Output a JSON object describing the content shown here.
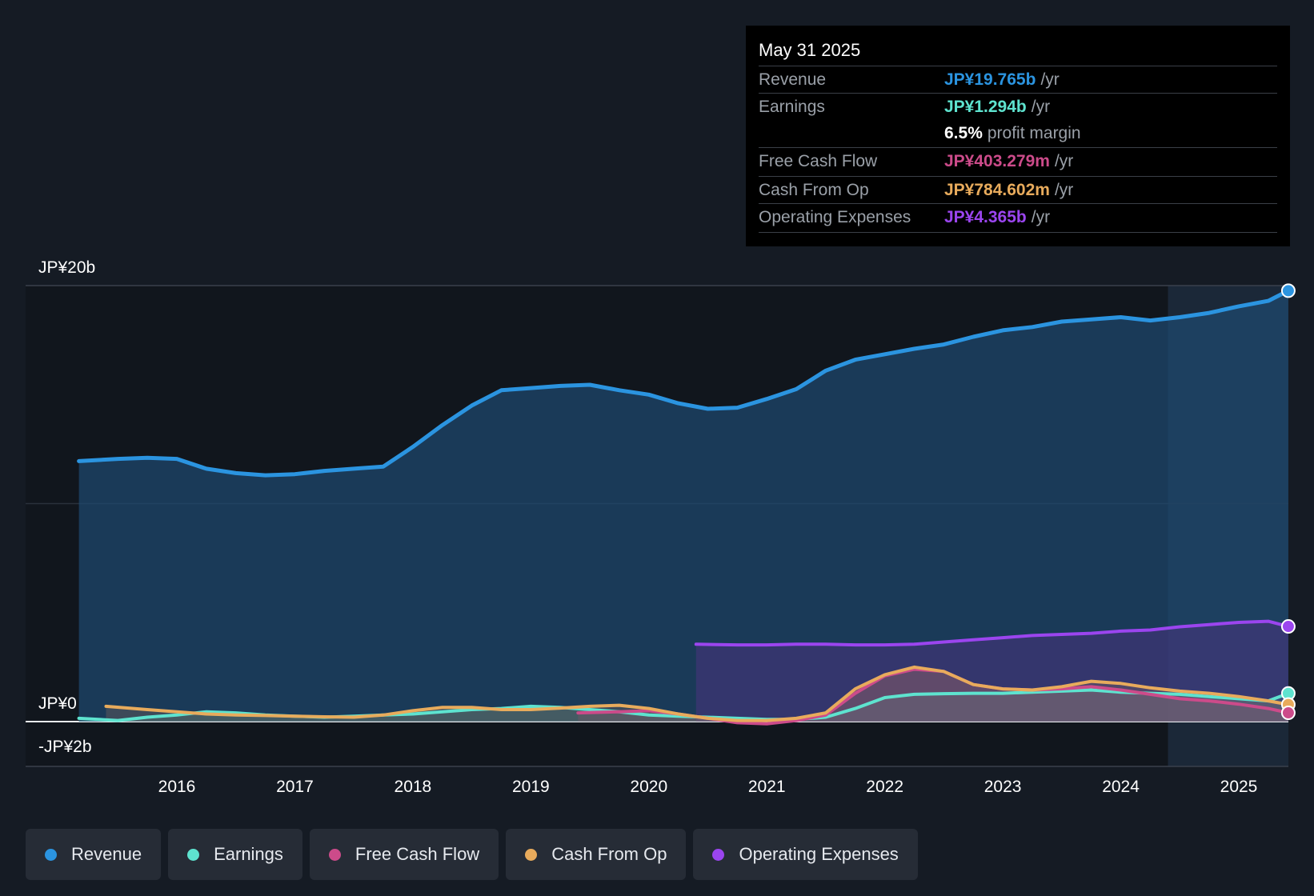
{
  "chart_data": {
    "type": "area",
    "y_axis_labels": [
      "JP¥20b",
      "JP¥0",
      "-JP¥2b"
    ],
    "ylim": [
      -2,
      20
    ],
    "x_ticks": [
      "2016",
      "2017",
      "2018",
      "2019",
      "2020",
      "2021",
      "2022",
      "2023",
      "2024",
      "2025"
    ],
    "xlim": [
      2015.0,
      2025.42
    ],
    "colors": {
      "revenue": "#2b94e0",
      "earnings": "#5ee3cf",
      "free_cash_flow": "#cc4b8a",
      "cash_from_op": "#e8ab5c",
      "operating_expenses": "#9b45ef"
    },
    "series": [
      {
        "name": "Revenue",
        "key": "revenue",
        "x": [
          2015.17,
          2015.5,
          2015.75,
          2016.0,
          2016.25,
          2016.5,
          2016.75,
          2017.0,
          2017.25,
          2017.5,
          2017.75,
          2018.0,
          2018.25,
          2018.5,
          2018.75,
          2019.0,
          2019.25,
          2019.5,
          2019.75,
          2020.0,
          2020.25,
          2020.5,
          2020.75,
          2021.0,
          2021.25,
          2021.5,
          2021.75,
          2022.0,
          2022.25,
          2022.5,
          2022.75,
          2023.0,
          2023.25,
          2023.5,
          2023.75,
          2024.0,
          2024.25,
          2024.5,
          2024.75,
          2025.0,
          2025.25,
          2025.42
        ],
        "values": [
          11.95,
          12.05,
          12.1,
          12.05,
          11.6,
          11.4,
          11.3,
          11.35,
          11.5,
          11.6,
          11.7,
          12.6,
          13.6,
          14.5,
          15.2,
          15.3,
          15.4,
          15.45,
          15.2,
          15.0,
          14.6,
          14.35,
          14.4,
          14.8,
          15.25,
          16.1,
          16.6,
          16.85,
          17.1,
          17.3,
          17.65,
          17.95,
          18.1,
          18.35,
          18.45,
          18.55,
          18.4,
          18.55,
          18.75,
          19.05,
          19.3,
          19.765
        ]
      },
      {
        "name": "Earnings",
        "key": "earnings",
        "x": [
          2015.17,
          2015.5,
          2015.75,
          2016.0,
          2016.25,
          2016.5,
          2016.75,
          2017.0,
          2017.25,
          2017.5,
          2017.75,
          2018.0,
          2018.25,
          2018.5,
          2018.75,
          2019.0,
          2019.25,
          2019.5,
          2019.75,
          2020.0,
          2020.25,
          2020.5,
          2020.75,
          2021.0,
          2021.25,
          2021.5,
          2021.75,
          2022.0,
          2022.25,
          2022.5,
          2022.75,
          2023.0,
          2023.25,
          2023.5,
          2023.75,
          2024.0,
          2024.25,
          2024.5,
          2024.75,
          2025.0,
          2025.25,
          2025.42
        ],
        "values": [
          0.15,
          0.05,
          0.2,
          0.3,
          0.45,
          0.4,
          0.3,
          0.25,
          0.2,
          0.25,
          0.3,
          0.35,
          0.45,
          0.55,
          0.6,
          0.7,
          0.65,
          0.55,
          0.45,
          0.3,
          0.25,
          0.2,
          0.15,
          0.1,
          0.1,
          0.2,
          0.6,
          1.1,
          1.25,
          1.28,
          1.3,
          1.3,
          1.35,
          1.4,
          1.45,
          1.35,
          1.3,
          1.25,
          1.15,
          1.05,
          0.95,
          1.294
        ]
      },
      {
        "name": "Free Cash Flow",
        "key": "free_cash_flow",
        "x": [
          2019.4,
          2019.75,
          2020.0,
          2020.25,
          2020.5,
          2020.75,
          2021.0,
          2021.25,
          2021.5,
          2021.75,
          2022.0,
          2022.25,
          2022.5,
          2022.75,
          2023.0,
          2023.25,
          2023.5,
          2023.75,
          2024.0,
          2024.25,
          2024.5,
          2024.75,
          2025.0,
          2025.25,
          2025.42
        ],
        "values": [
          0.4,
          0.45,
          0.5,
          0.35,
          0.15,
          -0.05,
          -0.1,
          0.05,
          0.3,
          1.3,
          2.1,
          2.4,
          2.3,
          1.7,
          1.5,
          1.45,
          1.5,
          1.6,
          1.45,
          1.25,
          1.05,
          0.95,
          0.8,
          0.6,
          0.403
        ]
      },
      {
        "name": "Cash From Op",
        "key": "cash_from_op",
        "x": [
          2015.4,
          2015.75,
          2016.0,
          2016.25,
          2016.5,
          2016.75,
          2017.0,
          2017.25,
          2017.5,
          2017.75,
          2018.0,
          2018.25,
          2018.5,
          2018.75,
          2019.0,
          2019.25,
          2019.5,
          2019.75,
          2020.0,
          2020.25,
          2020.5,
          2020.75,
          2021.0,
          2021.25,
          2021.5,
          2021.75,
          2022.0,
          2022.25,
          2022.5,
          2022.75,
          2023.0,
          2023.25,
          2023.5,
          2023.75,
          2024.0,
          2024.25,
          2024.5,
          2024.75,
          2025.0,
          2025.25,
          2025.42
        ],
        "values": [
          0.7,
          0.55,
          0.45,
          0.35,
          0.3,
          0.28,
          0.25,
          0.22,
          0.2,
          0.3,
          0.5,
          0.65,
          0.65,
          0.55,
          0.55,
          0.62,
          0.7,
          0.75,
          0.6,
          0.35,
          0.15,
          0.05,
          0.05,
          0.15,
          0.4,
          1.5,
          2.15,
          2.5,
          2.3,
          1.7,
          1.5,
          1.45,
          1.6,
          1.85,
          1.75,
          1.55,
          1.4,
          1.3,
          1.15,
          0.95,
          0.785
        ]
      },
      {
        "name": "Operating Expenses",
        "key": "operating_expenses",
        "x": [
          2020.4,
          2020.75,
          2021.0,
          2021.25,
          2021.5,
          2021.75,
          2022.0,
          2022.25,
          2022.5,
          2022.75,
          2023.0,
          2023.25,
          2023.5,
          2023.75,
          2024.0,
          2024.25,
          2024.5,
          2024.75,
          2025.0,
          2025.25,
          2025.42
        ],
        "values": [
          3.55,
          3.52,
          3.52,
          3.55,
          3.55,
          3.52,
          3.52,
          3.55,
          3.65,
          3.75,
          3.85,
          3.95,
          4.0,
          4.05,
          4.15,
          4.2,
          4.35,
          4.45,
          4.55,
          4.6,
          4.365
        ]
      }
    ],
    "forecast_shade_start": 2024.4,
    "grid": true
  },
  "tooltip": {
    "date": "May 31 2025",
    "rows": [
      {
        "label": "Revenue",
        "value": "JP¥19.765b",
        "unit": "/yr",
        "color": "#2b94e0"
      },
      {
        "label": "Earnings",
        "value": "JP¥1.294b",
        "unit": "/yr",
        "color": "#5ee3cf"
      },
      {
        "label": "",
        "value": "6.5%",
        "unit": "profit margin",
        "color": "#ffffff"
      },
      {
        "label": "Free Cash Flow",
        "value": "JP¥403.279m",
        "unit": "/yr",
        "color": "#cc4b8a"
      },
      {
        "label": "Cash From Op",
        "value": "JP¥784.602m",
        "unit": "/yr",
        "color": "#e8ab5c"
      },
      {
        "label": "Operating Expenses",
        "value": "JP¥4.365b",
        "unit": "/yr",
        "color": "#9b45ef"
      }
    ]
  },
  "legend": [
    {
      "label": "Revenue",
      "color": "#2b94e0"
    },
    {
      "label": "Earnings",
      "color": "#5ee3cf"
    },
    {
      "label": "Free Cash Flow",
      "color": "#cc4b8a"
    },
    {
      "label": "Cash From Op",
      "color": "#e8ab5c"
    },
    {
      "label": "Operating Expenses",
      "color": "#9b45ef"
    }
  ]
}
